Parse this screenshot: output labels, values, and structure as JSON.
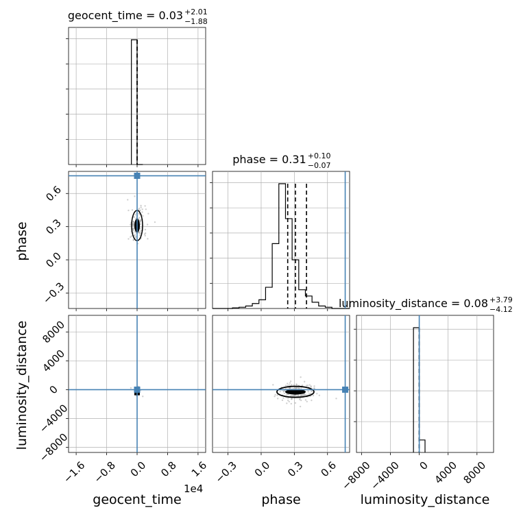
{
  "chart_data": {
    "type": "corner",
    "parameters": [
      "geocent_time",
      "phase",
      "luminosity_distance"
    ],
    "xlabels": [
      "geocent_time",
      "phase",
      "luminosity_distance"
    ],
    "ylabels": [
      "phase",
      "luminosity_distance"
    ],
    "x_offset_label": "1e4",
    "truth": {
      "color": "#4682b4",
      "geocent_time": 0.0,
      "phase": 0.76,
      "luminosity_distance": 0.0
    },
    "titles": [
      {
        "param": "geocent_time",
        "text": "geocent_time = 0.03",
        "plus": "+2.01",
        "minus": "−1.88"
      },
      {
        "param": "phase",
        "text": "phase = 0.31",
        "plus": "+0.10",
        "minus": "−0.07"
      },
      {
        "param": "luminosity_distance",
        "text": "luminosity_distance = 0.08",
        "plus": "+3.79",
        "minus": "−4.12"
      }
    ],
    "ranges": {
      "geocent_time": [
        -18000,
        18000
      ],
      "phase": [
        -0.44,
        0.8
      ],
      "luminosity_distance": [
        -8700,
        10300
      ]
    },
    "ticks": {
      "geocent_time": {
        "values": [
          -16000,
          -8000,
          0,
          8000,
          16000
        ],
        "labels": [
          "−1.6",
          "−0.8",
          "0.0",
          "0.8",
          "1.6"
        ]
      },
      "phase": {
        "values": [
          -0.3,
          0.0,
          0.3,
          0.6
        ],
        "labels": [
          "−0.3",
          "0.0",
          "0.3",
          "0.6"
        ]
      },
      "luminosity_distance": {
        "values": [
          -8000,
          -4000,
          0,
          4000,
          8000
        ],
        "labels": [
          "−8000",
          "−4000",
          "0",
          "4000",
          "8000"
        ]
      }
    },
    "hist_geocent_time": {
      "edges": [
        -1500,
        0,
        1500
      ],
      "counts": [
        1.0,
        0.0
      ],
      "quantiles": [
        0,
        0
      ]
    },
    "hist_phase": {
      "edges": [
        -0.44,
        -0.38,
        -0.32,
        -0.26,
        -0.2,
        -0.14,
        -0.08,
        -0.02,
        0.04,
        0.1,
        0.16,
        0.22,
        0.28,
        0.34,
        0.4,
        0.46,
        0.52,
        0.58,
        0.64,
        0.7,
        0.76,
        0.8
      ],
      "counts": [
        0,
        0,
        0,
        0.005,
        0.01,
        0.02,
        0.04,
        0.07,
        0.17,
        0.52,
        1.0,
        0.72,
        0.39,
        0.15,
        0.1,
        0.05,
        0.02,
        0.01,
        0,
        0,
        0
      ],
      "quantiles": [
        0.24,
        0.31,
        0.41
      ]
    },
    "hist_luminosity_distance": {
      "edges": [
        -800,
        0,
        800
      ],
      "counts": [
        1.0,
        0.1
      ],
      "quantiles": [
        0.0,
        0.0
      ]
    },
    "grid": true,
    "grid_color": "#b0b0b0",
    "hist_color": "#000000"
  }
}
